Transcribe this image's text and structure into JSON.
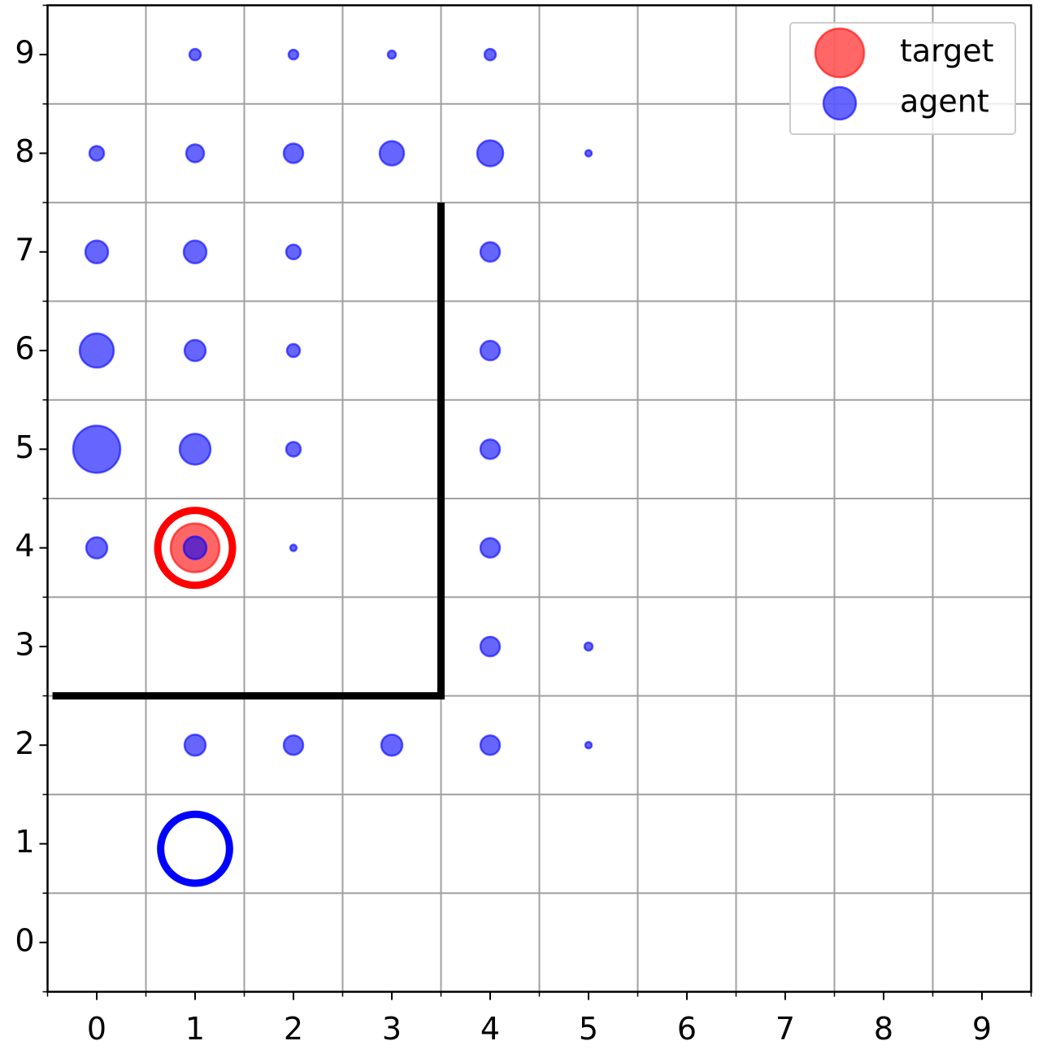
{
  "chart_data": {
    "type": "scatter",
    "xlim": [
      -0.5,
      9.5
    ],
    "ylim": [
      -0.5,
      9.5
    ],
    "xticks": [
      0,
      1,
      2,
      3,
      4,
      5,
      6,
      7,
      8,
      9
    ],
    "yticks": [
      0,
      1,
      2,
      3,
      4,
      5,
      6,
      7,
      8,
      9
    ],
    "grid_ticks": [
      -0.5,
      0.5,
      1.5,
      2.5,
      3.5,
      4.5,
      5.5,
      6.5,
      7.5,
      8.5,
      9.5
    ],
    "grid": true,
    "legend": "upper right",
    "series": [
      {
        "name": "target",
        "color": "#ff0000",
        "x": [
          1
        ],
        "y": [
          4
        ],
        "sizes": [
          30
        ]
      },
      {
        "name": "agent",
        "color": "#0000ff",
        "x": [
          1,
          2,
          3,
          4,
          0,
          1,
          2,
          3,
          4,
          5,
          0,
          1,
          2,
          4,
          0,
          1,
          2,
          4,
          0,
          1,
          2,
          4,
          0,
          1,
          2,
          4,
          4,
          5,
          1,
          2,
          3,
          4,
          5
        ],
        "y": [
          9,
          9,
          9,
          9,
          8,
          8,
          8,
          8,
          8,
          8,
          7,
          7,
          7,
          7,
          6,
          6,
          6,
          6,
          5,
          5,
          5,
          5,
          4,
          4,
          4,
          4,
          3,
          3,
          2,
          2,
          2,
          2,
          2
        ],
        "sizes": [
          7,
          6,
          5,
          7,
          9,
          11,
          12,
          15,
          16,
          4,
          14,
          14,
          9,
          12,
          21,
          13,
          8,
          12,
          29,
          19,
          9,
          12,
          13,
          14,
          4,
          12,
          12,
          5,
          13,
          12,
          13,
          12,
          4
        ]
      }
    ],
    "rings": [
      {
        "color": "#ff0000",
        "x": 1,
        "y": 4,
        "r": 0.38
      },
      {
        "color": "#0000ff",
        "x": 1,
        "y": 0.95,
        "r": 0.35
      }
    ],
    "walls": [
      {
        "color": "#000000",
        "x": [
          -0.45,
          3.5,
          3.5
        ],
        "y": [
          2.5,
          2.5,
          7.5
        ]
      }
    ]
  }
}
